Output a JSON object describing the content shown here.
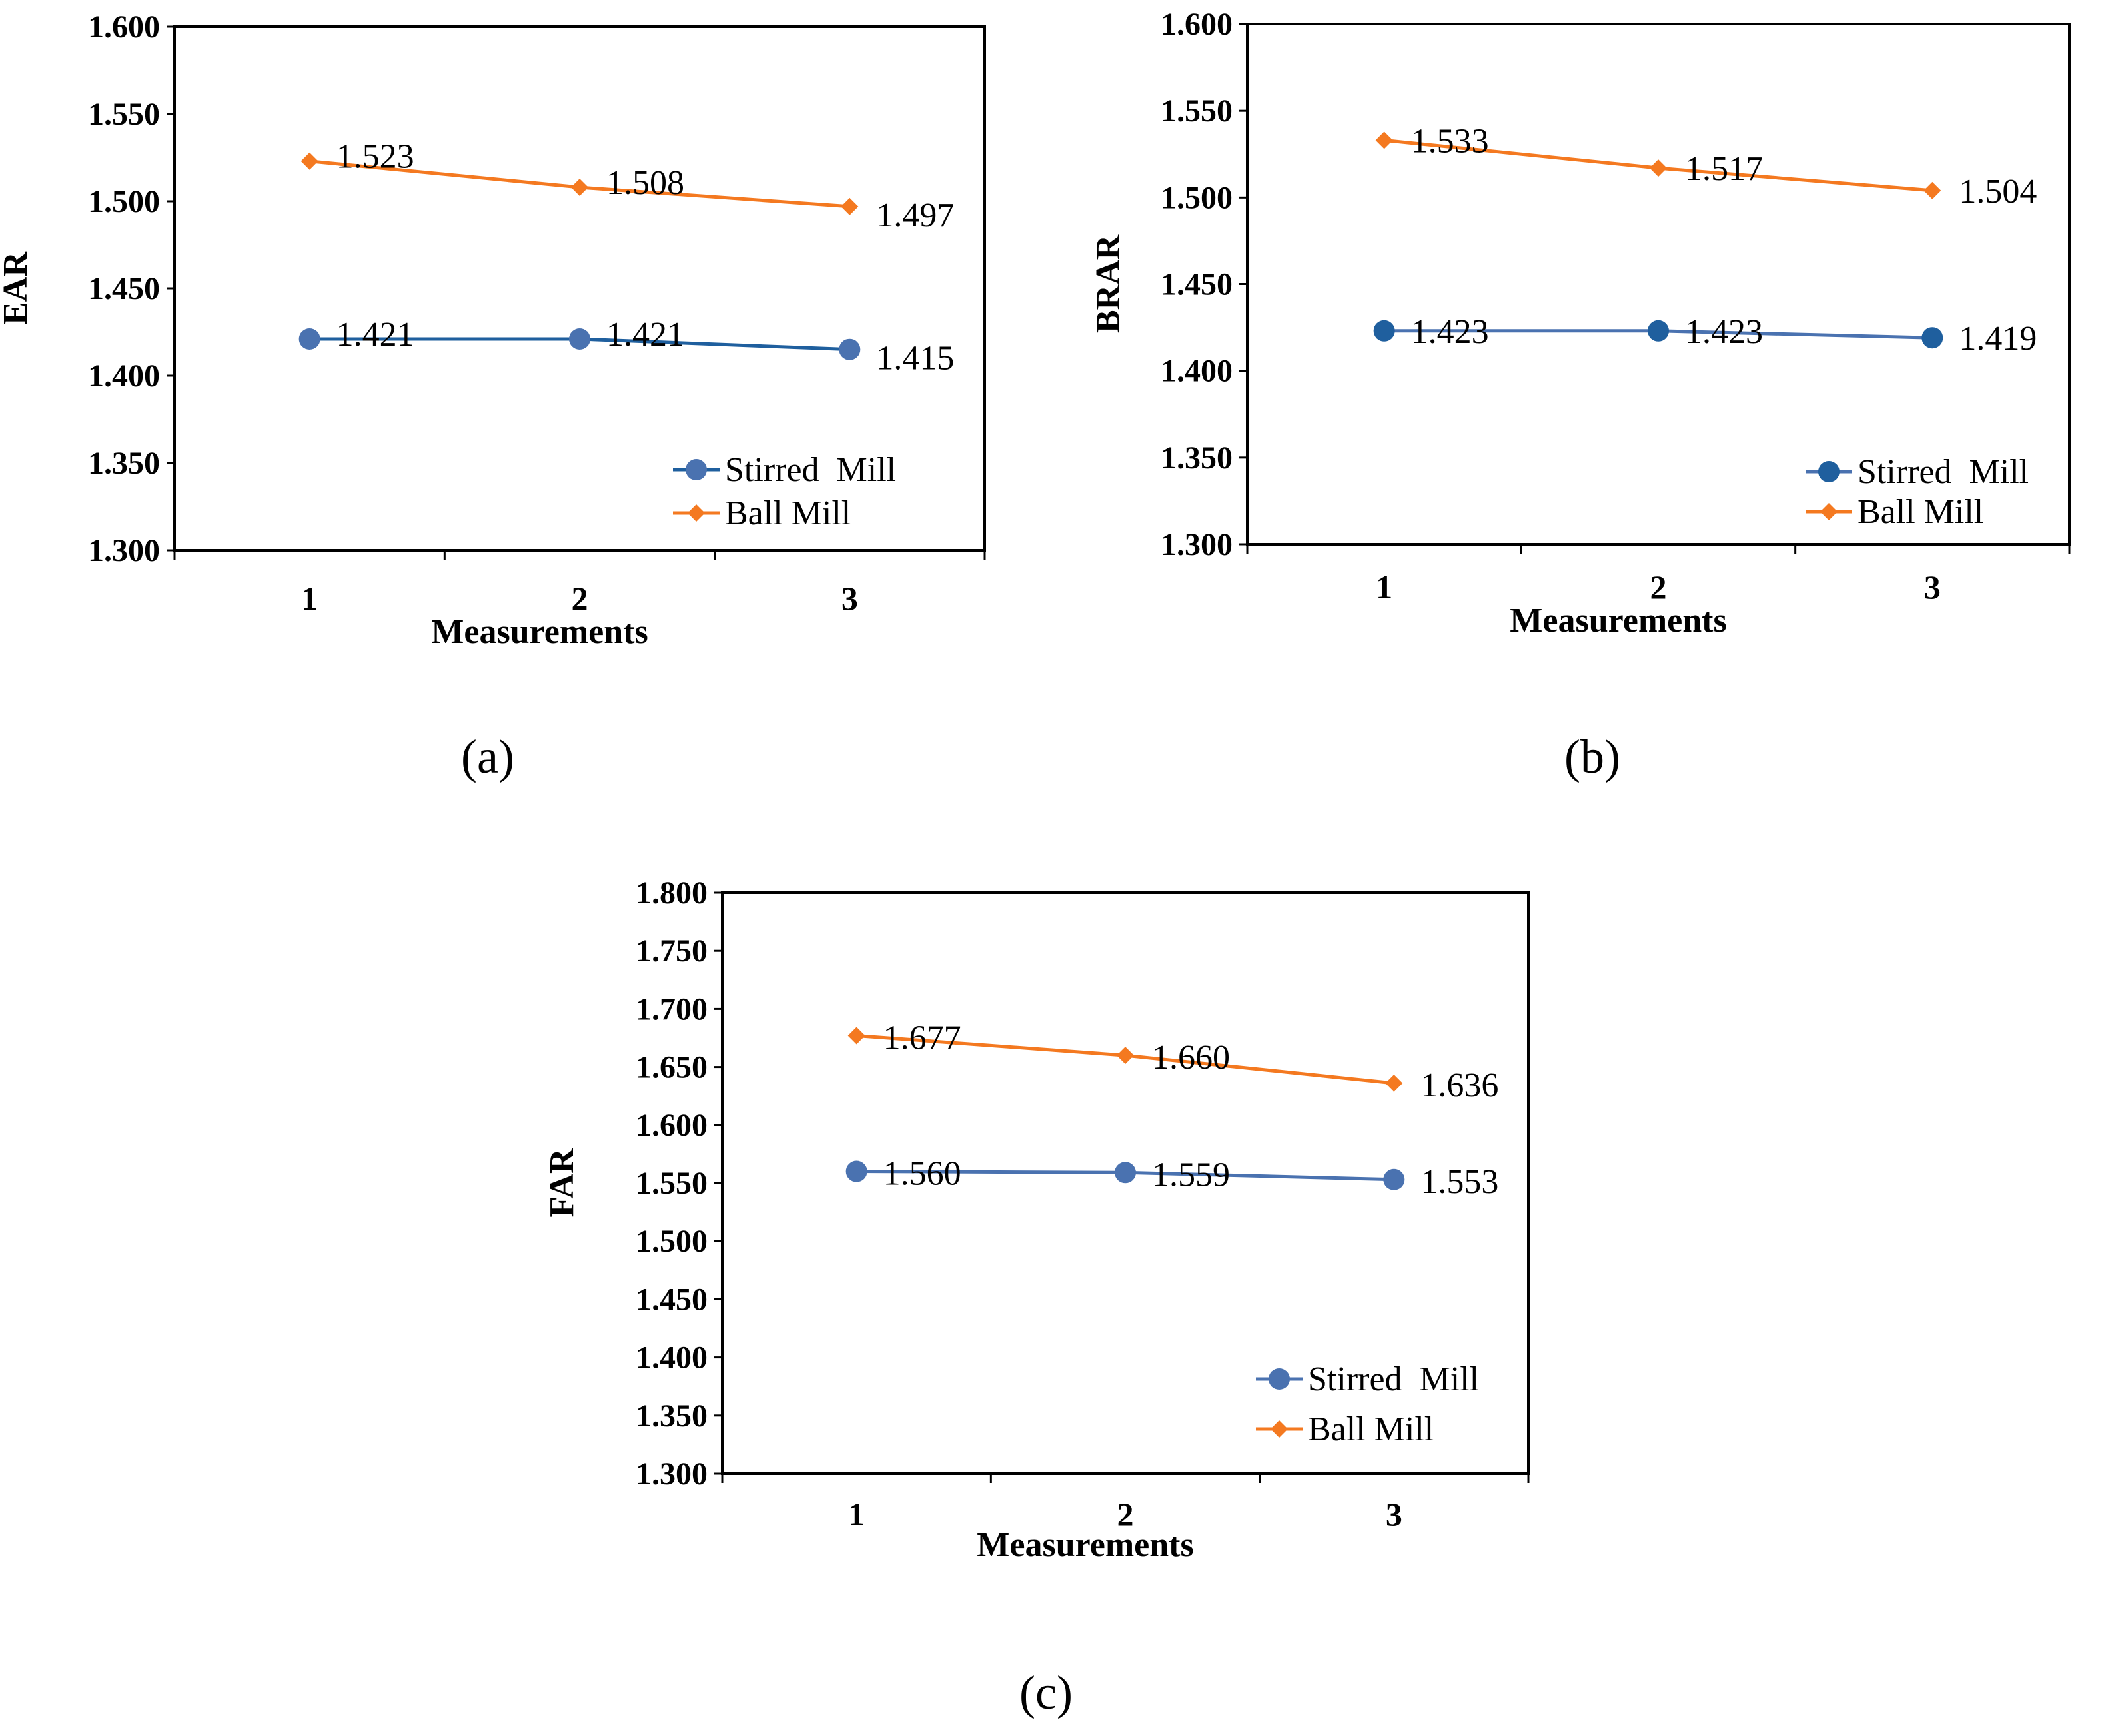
{
  "chart_data": [
    {
      "type": "line",
      "categories": [
        "1",
        "2",
        "3"
      ],
      "xlabel": "Measurements",
      "ylabel": "EAR",
      "ylim": [
        1.3,
        1.6
      ],
      "yticks": [
        "1.300",
        "1.350",
        "1.400",
        "1.450",
        "1.500",
        "1.550",
        "1.600"
      ],
      "legend": "bottom-right",
      "series": [
        {
          "name": "Stirred  Mill",
          "values": [
            1.421,
            1.421,
            1.415
          ],
          "labels": [
            "1.421",
            "1.421",
            "1.415"
          ],
          "color": "#1f5f9e",
          "marker": "circle",
          "markerColor": "#4a72b0"
        },
        {
          "name": "Ball Mill",
          "values": [
            1.523,
            1.508,
            1.497
          ],
          "labels": [
            "1.523",
            "1.508",
            "1.497"
          ],
          "color": "#f47920",
          "marker": "diamond",
          "markerColor": "#f47920"
        }
      ]
    },
    {
      "type": "line",
      "categories": [
        "1",
        "2",
        "3"
      ],
      "xlabel": "Measurements",
      "ylabel": "BRAR",
      "ylim": [
        1.3,
        1.6
      ],
      "yticks": [
        "1.300",
        "1.350",
        "1.400",
        "1.450",
        "1.500",
        "1.550",
        "1.600"
      ],
      "legend": "bottom-right",
      "series": [
        {
          "name": "Stirred  Mill",
          "values": [
            1.423,
            1.423,
            1.419
          ],
          "labels": [
            "1.423",
            "1.423",
            "1.419"
          ],
          "color": "#4a72b0",
          "marker": "circle",
          "markerColor": "#1f5f9e"
        },
        {
          "name": "Ball Mill",
          "values": [
            1.533,
            1.517,
            1.504
          ],
          "labels": [
            "1.533",
            "1.517",
            "1.504"
          ],
          "color": "#f47920",
          "marker": "diamond",
          "markerColor": "#f47920"
        }
      ]
    },
    {
      "type": "line",
      "categories": [
        "1",
        "2",
        "3"
      ],
      "xlabel": "Measurements",
      "ylabel": "FAR",
      "ylim": [
        1.3,
        1.8
      ],
      "yticks": [
        "1.300",
        "1.350",
        "1.400",
        "1.450",
        "1.500",
        "1.550",
        "1.600",
        "1.650",
        "1.700",
        "1.750",
        "1.800"
      ],
      "legend": "bottom-right",
      "series": [
        {
          "name": "Stirred  Mill",
          "values": [
            1.56,
            1.559,
            1.553
          ],
          "labels": [
            "1.560",
            "1.559",
            "1.553"
          ],
          "color": "#4a72b0",
          "marker": "circle",
          "markerColor": "#4a72b0"
        },
        {
          "name": "Ball Mill",
          "values": [
            1.677,
            1.66,
            1.636
          ],
          "labels": [
            "1.677",
            "1.660",
            "1.636"
          ],
          "color": "#f47920",
          "marker": "diamond",
          "markerColor": "#f47920"
        }
      ]
    }
  ],
  "captions": [
    "(a)",
    "(b)",
    "(c)"
  ]
}
